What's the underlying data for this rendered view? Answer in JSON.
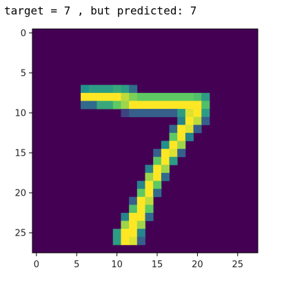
{
  "output_text": "target = 7 , but predicted: 7",
  "chart_data": {
    "type": "heatmap",
    "title": "",
    "xlabel": "",
    "ylabel": "",
    "xlim": [
      -0.5,
      27.5
    ],
    "ylim": [
      27.5,
      -0.5
    ],
    "xticks": [
      0,
      5,
      10,
      15,
      20,
      25
    ],
    "yticks": [
      0,
      5,
      10,
      15,
      20,
      25
    ],
    "grid": false,
    "colormap": "viridis",
    "vmin": 0,
    "vmax": 1,
    "colors": {
      "low": "#440154",
      "mid_low": "#3b528b",
      "mid": "#21918c",
      "mid_high": "#5ec962",
      "high": "#fde725"
    },
    "size": [
      28,
      28
    ],
    "pixels": [
      [
        7,
        6,
        0.5
      ],
      [
        7,
        7,
        0.55
      ],
      [
        7,
        8,
        0.55
      ],
      [
        7,
        9,
        0.55
      ],
      [
        7,
        10,
        0.6
      ],
      [
        7,
        11,
        0.55
      ],
      [
        7,
        12,
        0.35
      ],
      [
        8,
        6,
        1.0
      ],
      [
        8,
        7,
        1.0
      ],
      [
        8,
        8,
        1.0
      ],
      [
        8,
        9,
        1.0
      ],
      [
        8,
        10,
        1.0
      ],
      [
        8,
        11,
        0.9
      ],
      [
        8,
        12,
        0.8
      ],
      [
        8,
        13,
        0.75
      ],
      [
        8,
        14,
        0.75
      ],
      [
        8,
        15,
        0.75
      ],
      [
        8,
        16,
        0.75
      ],
      [
        8,
        17,
        0.75
      ],
      [
        8,
        18,
        0.75
      ],
      [
        8,
        19,
        0.75
      ],
      [
        8,
        20,
        0.7
      ],
      [
        8,
        21,
        0.55
      ],
      [
        9,
        6,
        0.35
      ],
      [
        9,
        7,
        0.35
      ],
      [
        9,
        8,
        0.6
      ],
      [
        9,
        9,
        0.6
      ],
      [
        9,
        10,
        0.75
      ],
      [
        9,
        11,
        0.85
      ],
      [
        9,
        12,
        1.0
      ],
      [
        9,
        13,
        1.0
      ],
      [
        9,
        14,
        1.0
      ],
      [
        9,
        15,
        1.0
      ],
      [
        9,
        16,
        1.0
      ],
      [
        9,
        17,
        1.0
      ],
      [
        9,
        18,
        1.0
      ],
      [
        9,
        19,
        1.0
      ],
      [
        9,
        20,
        1.0
      ],
      [
        9,
        21,
        0.7
      ],
      [
        10,
        11,
        0.2
      ],
      [
        10,
        12,
        0.3
      ],
      [
        10,
        13,
        0.3
      ],
      [
        10,
        14,
        0.3
      ],
      [
        10,
        15,
        0.3
      ],
      [
        10,
        16,
        0.3
      ],
      [
        10,
        17,
        0.3
      ],
      [
        10,
        18,
        0.55
      ],
      [
        10,
        19,
        0.95
      ],
      [
        10,
        20,
        1.0
      ],
      [
        10,
        21,
        0.55
      ],
      [
        11,
        18,
        0.45
      ],
      [
        11,
        19,
        1.0
      ],
      [
        11,
        20,
        0.9
      ],
      [
        11,
        21,
        0.3
      ],
      [
        12,
        17,
        0.35
      ],
      [
        12,
        18,
        1.0
      ],
      [
        12,
        19,
        0.95
      ],
      [
        12,
        20,
        0.3
      ],
      [
        13,
        17,
        0.75
      ],
      [
        13,
        18,
        1.0
      ],
      [
        13,
        19,
        0.45
      ],
      [
        14,
        16,
        0.5
      ],
      [
        14,
        17,
        1.0
      ],
      [
        14,
        18,
        0.85
      ],
      [
        15,
        15,
        0.3
      ],
      [
        15,
        16,
        1.0
      ],
      [
        15,
        17,
        0.95
      ],
      [
        15,
        18,
        0.3
      ],
      [
        16,
        15,
        0.75
      ],
      [
        16,
        16,
        1.0
      ],
      [
        16,
        17,
        0.55
      ],
      [
        17,
        14,
        0.45
      ],
      [
        17,
        15,
        1.0
      ],
      [
        17,
        16,
        0.85
      ],
      [
        18,
        14,
        0.85
      ],
      [
        18,
        15,
        1.0
      ],
      [
        18,
        16,
        0.35
      ],
      [
        19,
        13,
        0.45
      ],
      [
        19,
        14,
        1.0
      ],
      [
        19,
        15,
        0.75
      ],
      [
        20,
        13,
        0.75
      ],
      [
        20,
        14,
        1.0
      ],
      [
        20,
        15,
        0.35
      ],
      [
        21,
        12,
        0.3
      ],
      [
        21,
        13,
        1.0
      ],
      [
        21,
        14,
        0.9
      ],
      [
        22,
        12,
        0.7
      ],
      [
        22,
        13,
        1.0
      ],
      [
        22,
        14,
        0.75
      ],
      [
        23,
        11,
        0.45
      ],
      [
        23,
        12,
        1.0
      ],
      [
        23,
        13,
        1.0
      ],
      [
        23,
        14,
        0.35
      ],
      [
        24,
        11,
        0.85
      ],
      [
        24,
        12,
        1.0
      ],
      [
        24,
        13,
        0.85
      ],
      [
        25,
        10,
        0.55
      ],
      [
        25,
        11,
        1.0
      ],
      [
        25,
        12,
        1.0
      ],
      [
        25,
        13,
        0.45
      ],
      [
        26,
        10,
        0.55
      ],
      [
        26,
        11,
        1.0
      ],
      [
        26,
        12,
        0.95
      ],
      [
        26,
        13,
        0.3
      ]
    ]
  }
}
